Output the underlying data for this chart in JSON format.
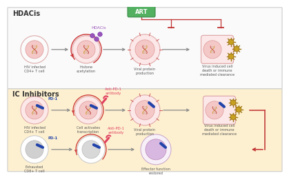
{
  "bg_color": "#ffffff",
  "hdacis_bg": "#ffffff",
  "ic_bg": "#fdf0d0",
  "cell_pink_light": "#fce8e8",
  "cell_pink_mid": "#f5c8c8",
  "cell_pink_deep": "#f0b0b0",
  "cell_white": "#ffffff",
  "cell_gray_light": "#e8e8e8",
  "cell_gray_mid": "#d0d0d0",
  "cell_purple_fill": "#d8b8e0",
  "cell_purple_inner": "#c8a0d8",
  "art_green": "#52b060",
  "art_border": "#3a8a48",
  "arrow_red": "#c03030",
  "arrow_dark": "#777777",
  "dna_gold": "#d4a030",
  "dna_red": "#cc4444",
  "pd1_blue": "#2244aa",
  "anti_pd1_pink": "#e04060",
  "hdacis_purple": "#9955bb",
  "virus_gold": "#c8a020",
  "virus_border": "#a07818",
  "section_border": "#cccccc",
  "text_dark": "#444444",
  "text_label": "#555555",
  "hdacis_label": "HDACis",
  "ic_label": "IC Inhibitors",
  "art_label": "ART",
  "row1_labels": [
    "HIV infected\nCD4+ T cell",
    "Histone\nacetylation",
    "Viral protein\nproduction",
    "Virus induced cell\ndeath or immune\nmediated clearance"
  ],
  "row2_labels": [
    "HIV infected\nCD4+ T cell",
    "Cell activates\ntranscription",
    "Viral protein\nproduction",
    "Virus induced cell\ndeath or immune\nmediated clearance"
  ],
  "row3_labels": [
    "Exhausted\nCD8+ T cell",
    "",
    "Effector function\nrestored",
    ""
  ],
  "hdacis_tag": "HDACis",
  "anti_pd1_tag": "Anti-PD-1\nantibody",
  "pd1_tag": "PD-1"
}
